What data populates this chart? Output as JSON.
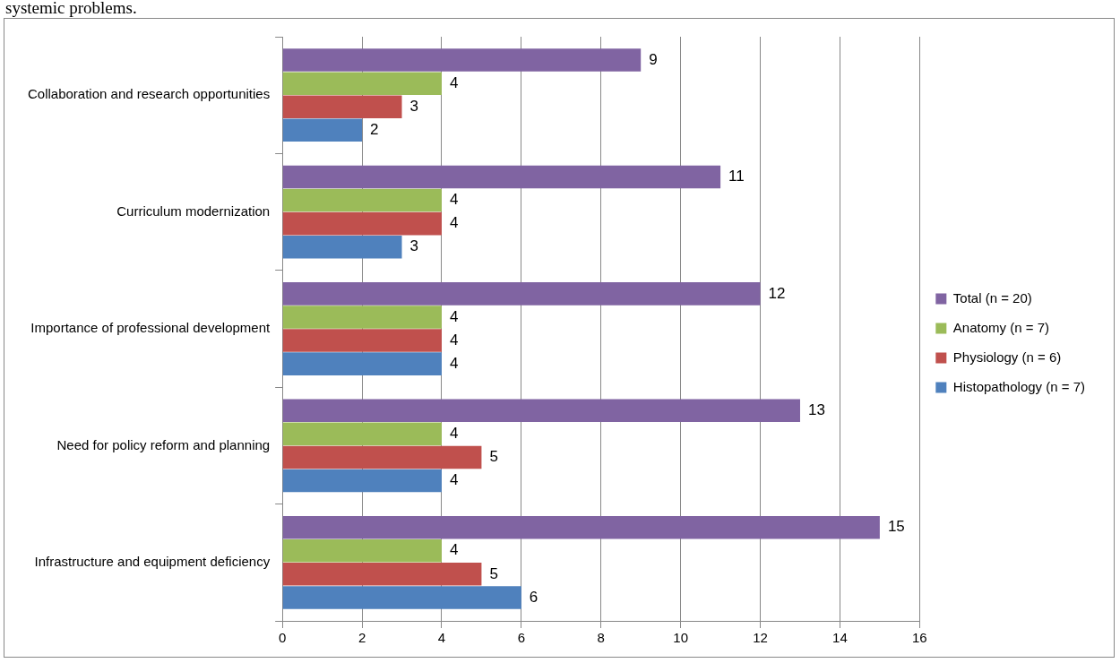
{
  "chart_data": {
    "type": "bar",
    "orientation": "horizontal",
    "annotations": [
      "systemic problems."
    ],
    "categories": [
      "Collaboration and research opportunities",
      "Curriculum modernization",
      "Importance of professional development",
      "Need for policy reform and planning",
      "Infrastructure and equipment deficiency"
    ],
    "series": [
      {
        "name": "Total (n = 20)",
        "color": "#8064a2",
        "values": [
          9,
          11,
          12,
          13,
          15
        ]
      },
      {
        "name": "Anatomy (n = 7)",
        "color": "#9bbb59",
        "values": [
          4,
          4,
          4,
          4,
          4
        ]
      },
      {
        "name": "Physiology (n = 6)",
        "color": "#c0504d",
        "values": [
          3,
          4,
          4,
          5,
          5
        ]
      },
      {
        "name": "Histopathology (n = 7)",
        "color": "#4f81bd",
        "values": [
          2,
          3,
          4,
          4,
          6
        ]
      }
    ],
    "xlim": [
      0,
      16
    ],
    "xticks": [
      0,
      2,
      4,
      6,
      8,
      10,
      12,
      14,
      16
    ],
    "grid": "x",
    "legend": "right",
    "data_labels": true
  }
}
